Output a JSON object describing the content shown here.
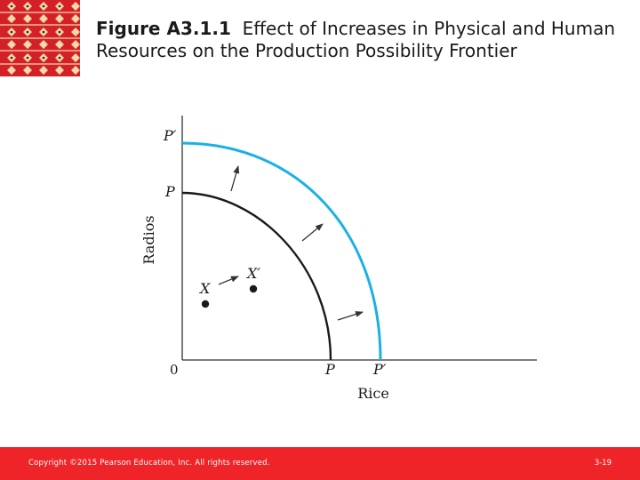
{
  "header": {
    "figure_label": "Figure A3.1.1",
    "title_text": "Effect of Increases in Physical and Human Resources on the Production Possibility Frontier"
  },
  "diagram": {
    "y_axis_label": "Radios",
    "x_axis_label": "Rice",
    "origin_label": "0",
    "y_tick_new": "P′",
    "y_tick_old": "P",
    "x_tick_old": "P",
    "x_tick_new": "P′",
    "point_x_label": "X",
    "point_x_prime_label": "X′",
    "colors": {
      "old_frontier": "#1a1a1a",
      "new_frontier": "#1ab0e6",
      "axes": "#333333"
    }
  },
  "footer": {
    "copyright": "Copyright ©2015 Pearson Education, Inc. All rights reserved.",
    "slide_number": "3-19"
  }
}
